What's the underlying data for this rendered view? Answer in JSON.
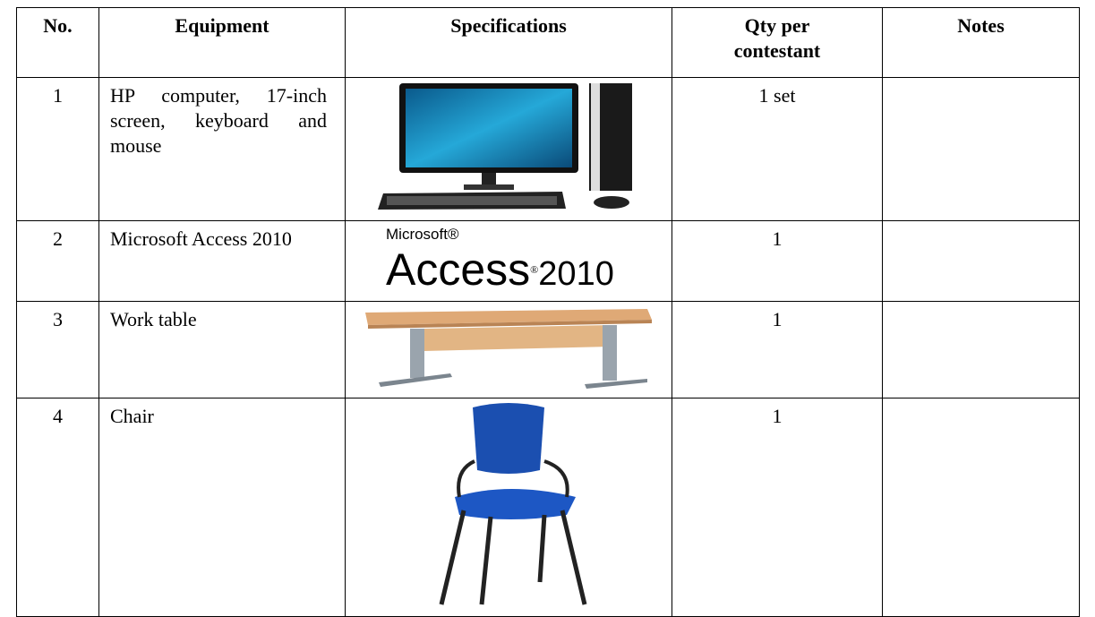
{
  "header": [
    "No.",
    "Equipment",
    "Specifications",
    "Qty per contestant",
    "Notes"
  ],
  "rows": [
    {
      "no": "1",
      "equipment": "HP computer, 17-inch screen, keyboard and mouse",
      "qty": "1 set"
    },
    {
      "no": "2",
      "equipment": "Microsoft Access 2010",
      "qty": "1"
    },
    {
      "no": "3",
      "equipment": "Work table",
      "qty": "1"
    },
    {
      "no": "4",
      "equipment": "Chair",
      "qty": "1"
    }
  ],
  "logo": {
    "brand": "Microsoft®",
    "product": "Access",
    "version": "2010"
  }
}
